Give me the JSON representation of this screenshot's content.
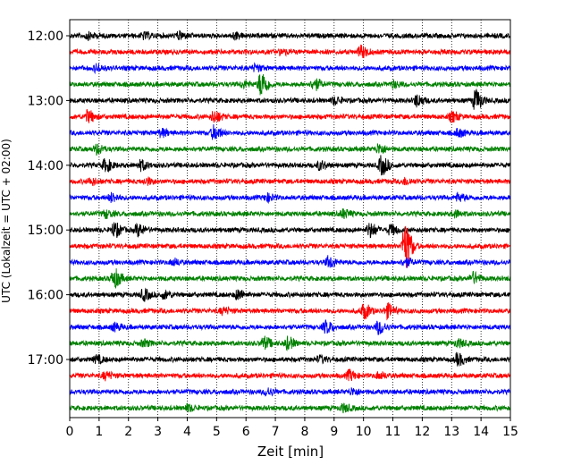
{
  "chart_data": {
    "type": "line",
    "title": "",
    "xlabel": "Zeit  [min]",
    "ylabel": "UTC (Lokalzeit = UTC + 02:00)",
    "xlim": [
      0,
      15
    ],
    "x_ticks": [
      "0",
      "1",
      "2",
      "3",
      "4",
      "5",
      "6",
      "7",
      "8",
      "9",
      "10",
      "11",
      "12",
      "13",
      "14",
      "15"
    ],
    "y_ticks": [
      {
        "label": "12:00",
        "trace": 0
      },
      {
        "label": "13:00",
        "trace": 4
      },
      {
        "label": "14:00",
        "trace": 8
      },
      {
        "label": "15:00",
        "trace": 12
      },
      {
        "label": "16:00",
        "trace": 16
      },
      {
        "label": "17:00",
        "trace": 20
      }
    ],
    "grid": "vertical-dotted",
    "colors": [
      "#000000",
      "#ff0000",
      "#0000ff",
      "#008000"
    ],
    "series": [
      {
        "start": "12:00",
        "events": [
          [
            0.6,
            0.5
          ],
          [
            2.5,
            0.5
          ],
          [
            3.7,
            0.6
          ],
          [
            5.6,
            0.5
          ]
        ]
      },
      {
        "start": "12:15",
        "events": [
          [
            7.2,
            0.4
          ],
          [
            9.9,
            1.0
          ]
        ]
      },
      {
        "start": "12:30",
        "events": [
          [
            0.9,
            0.6
          ],
          [
            6.3,
            0.5
          ]
        ]
      },
      {
        "start": "12:45",
        "events": [
          [
            6.5,
            2.2
          ],
          [
            8.3,
            1.0
          ],
          [
            5.9,
            0.5
          ],
          [
            11.0,
            0.5
          ]
        ]
      },
      {
        "start": "13:00",
        "events": [
          [
            9.0,
            0.6
          ],
          [
            11.8,
            1.0
          ],
          [
            13.8,
            1.8
          ]
        ]
      },
      {
        "start": "13:15",
        "events": [
          [
            0.6,
            1.0
          ],
          [
            4.9,
            1.0
          ],
          [
            13.0,
            0.8
          ]
        ]
      },
      {
        "start": "13:30",
        "events": [
          [
            4.9,
            1.2
          ],
          [
            3.1,
            0.6
          ],
          [
            13.2,
            0.6
          ]
        ]
      },
      {
        "start": "13:45",
        "events": [
          [
            0.9,
            0.8
          ],
          [
            10.5,
            0.8
          ]
        ]
      },
      {
        "start": "14:00",
        "events": [
          [
            1.2,
            1.0
          ],
          [
            2.4,
            0.8
          ],
          [
            8.5,
            0.7
          ],
          [
            10.6,
            1.6
          ]
        ]
      },
      {
        "start": "14:15",
        "events": [
          [
            0.7,
            0.5
          ],
          [
            2.6,
            0.5
          ],
          [
            11.4,
            0.5
          ]
        ]
      },
      {
        "start": "14:30",
        "events": [
          [
            1.4,
            0.7
          ],
          [
            6.7,
            0.6
          ],
          [
            13.2,
            0.6
          ]
        ]
      },
      {
        "start": "14:45",
        "events": [
          [
            1.2,
            0.6
          ],
          [
            9.3,
            0.7
          ],
          [
            13.1,
            0.5
          ]
        ]
      },
      {
        "start": "15:00",
        "events": [
          [
            1.5,
            1.2
          ],
          [
            2.3,
            1.0
          ],
          [
            10.2,
            1.2
          ],
          [
            10.9,
            0.8
          ]
        ]
      },
      {
        "start": "15:15",
        "events": [
          [
            11.4,
            4.0
          ]
        ]
      },
      {
        "start": "15:30",
        "events": [
          [
            8.8,
            0.9
          ],
          [
            11.4,
            0.7
          ],
          [
            3.5,
            0.5
          ]
        ]
      },
      {
        "start": "15:45",
        "events": [
          [
            1.5,
            1.6
          ],
          [
            13.7,
            1.0
          ]
        ]
      },
      {
        "start": "16:00",
        "events": [
          [
            2.5,
            0.9
          ],
          [
            3.2,
            0.6
          ],
          [
            5.7,
            0.8
          ]
        ]
      },
      {
        "start": "16:15",
        "events": [
          [
            10.0,
            1.2
          ],
          [
            10.8,
            1.2
          ],
          [
            5.2,
            0.5
          ]
        ]
      },
      {
        "start": "16:30",
        "events": [
          [
            1.5,
            0.6
          ],
          [
            8.7,
            1.0
          ],
          [
            10.5,
            1.1
          ]
        ]
      },
      {
        "start": "16:45",
        "events": [
          [
            2.5,
            0.5
          ],
          [
            6.6,
            1.0
          ],
          [
            7.4,
            1.0
          ],
          [
            13.2,
            0.6
          ]
        ]
      },
      {
        "start": "17:00",
        "events": [
          [
            0.9,
            0.6
          ],
          [
            8.5,
            0.5
          ],
          [
            13.2,
            1.0
          ]
        ]
      },
      {
        "start": "17:15",
        "events": [
          [
            1.2,
            0.6
          ],
          [
            9.5,
            0.8
          ],
          [
            10.5,
            0.5
          ]
        ]
      },
      {
        "start": "17:30",
        "events": [
          [
            6.7,
            0.6
          ],
          [
            9.6,
            0.5
          ]
        ]
      },
      {
        "start": "17:45",
        "events": [
          [
            4.0,
            0.5
          ],
          [
            9.3,
            0.6
          ]
        ]
      }
    ]
  }
}
